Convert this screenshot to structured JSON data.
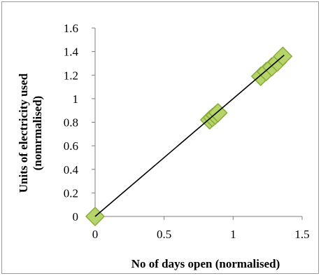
{
  "chart_data": {
    "type": "scatter",
    "title": "",
    "xlabel": "No of days open (normalised)",
    "ylabel_line1": "Units of electricity used",
    "ylabel_line2": "(nomrmalised)",
    "xlim": [
      0,
      1.5
    ],
    "ylim": [
      0,
      1.6
    ],
    "x_ticks": [
      0,
      0.5,
      1,
      1.5
    ],
    "x_tick_labels": [
      "0",
      "0.5",
      "1",
      "1.5"
    ],
    "y_ticks": [
      0,
      0.2,
      0.4,
      0.6,
      0.8,
      1.0,
      1.2,
      1.4,
      1.6
    ],
    "y_tick_labels": [
      "0",
      "0.2",
      "0.4",
      "0.6",
      "0.8",
      "1",
      "1.2",
      "1.4",
      "1.6"
    ],
    "grid": false,
    "legend": "none",
    "marker": "diamond",
    "marker_fill": "#b5d56a",
    "marker_edge": "#8aaa3c",
    "trendline_color": "#000000",
    "points": [
      {
        "x": 0.0,
        "y": 0.0
      },
      {
        "x": 0.83,
        "y": 0.82
      },
      {
        "x": 0.85,
        "y": 0.84
      },
      {
        "x": 0.87,
        "y": 0.86
      },
      {
        "x": 0.89,
        "y": 0.88
      },
      {
        "x": 1.2,
        "y": 1.19
      },
      {
        "x": 1.24,
        "y": 1.23
      },
      {
        "x": 1.28,
        "y": 1.27
      },
      {
        "x": 1.32,
        "y": 1.31
      },
      {
        "x": 1.36,
        "y": 1.36
      }
    ],
    "trendline": {
      "x": [
        0.0,
        1.37
      ],
      "y": [
        0.0,
        1.37
      ]
    }
  }
}
